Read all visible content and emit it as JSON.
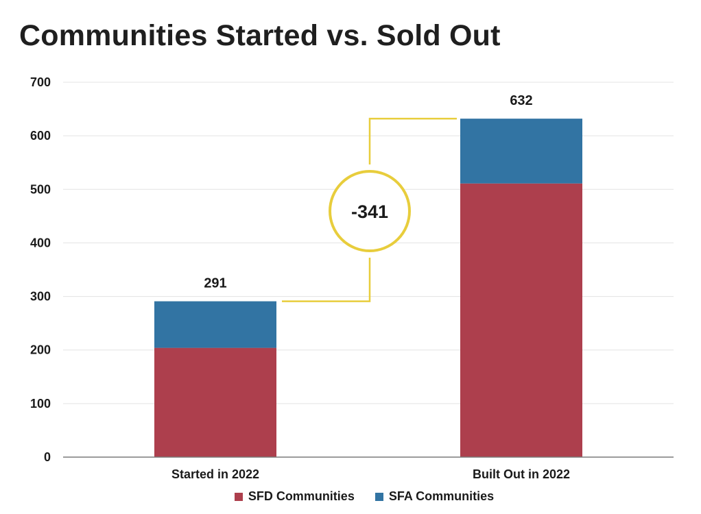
{
  "chart_data": {
    "type": "bar",
    "stacked": true,
    "title": "Communities Started vs. Sold Out",
    "categories": [
      "Started in 2022",
      "Built Out in 2022"
    ],
    "series": [
      {
        "name": "SFD Communities",
        "values": [
          204,
          511
        ],
        "color": "#ad3f4d"
      },
      {
        "name": "SFA Communities",
        "values": [
          87,
          121
        ],
        "color": "#3274a3"
      }
    ],
    "totals": [
      "291",
      "632"
    ],
    "difference": {
      "label": "-341",
      "color": "#e8cd3c"
    },
    "ylim": [
      0,
      700
    ],
    "yticks": [
      0,
      100,
      200,
      300,
      400,
      500,
      600,
      700
    ],
    "grid": true,
    "legend_position": "bottom"
  }
}
